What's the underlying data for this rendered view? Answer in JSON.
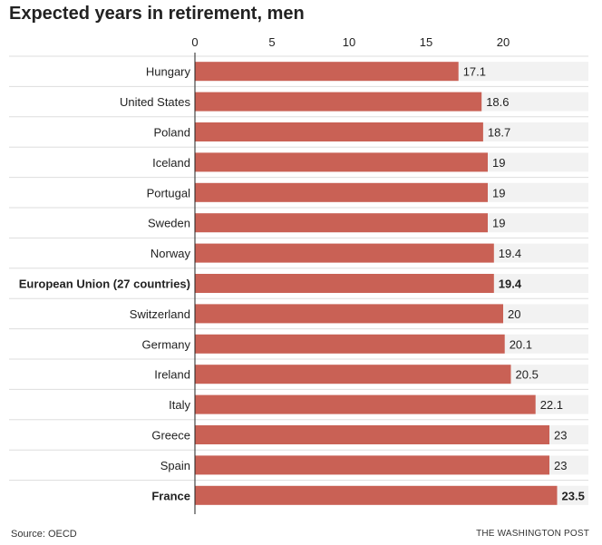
{
  "title": "Expected years in retirement, men",
  "footer": {
    "source": "Source: OECD",
    "credit": "THE WASHINGTON POST"
  },
  "colors": {
    "bar": "#c96155",
    "track": "#f2f2f2",
    "separator": "#dddddd",
    "axis": "#222222",
    "text": "#222222"
  },
  "chart_data": {
    "type": "bar",
    "orientation": "horizontal",
    "title": "Expected years in retirement, men",
    "xlim": [
      0,
      23.5
    ],
    "ticks": [
      0,
      5,
      10,
      15,
      20
    ],
    "tick_labels": [
      "0",
      "5",
      "10",
      "15",
      "20"
    ],
    "categories": [
      "Hungary",
      "United States",
      "Poland",
      "Iceland",
      "Portugal",
      "Sweden",
      "Norway",
      "European Union (27 countries)",
      "Switzerland",
      "Germany",
      "Ireland",
      "Italy",
      "Greece",
      "Spain",
      "France"
    ],
    "values": [
      17.1,
      18.6,
      18.7,
      19,
      19,
      19,
      19.4,
      19.4,
      20,
      20.1,
      20.5,
      22.1,
      23,
      23,
      23.5
    ],
    "value_labels": [
      "17.1",
      "18.6",
      "18.7",
      "19",
      "19",
      "19",
      "19.4",
      "19.4",
      "20",
      "20.1",
      "20.5",
      "22.1",
      "23",
      "23",
      "23.5"
    ],
    "highlighted": [
      "European Union (27 countries)",
      "France"
    ],
    "grid": false,
    "legend": "none"
  }
}
